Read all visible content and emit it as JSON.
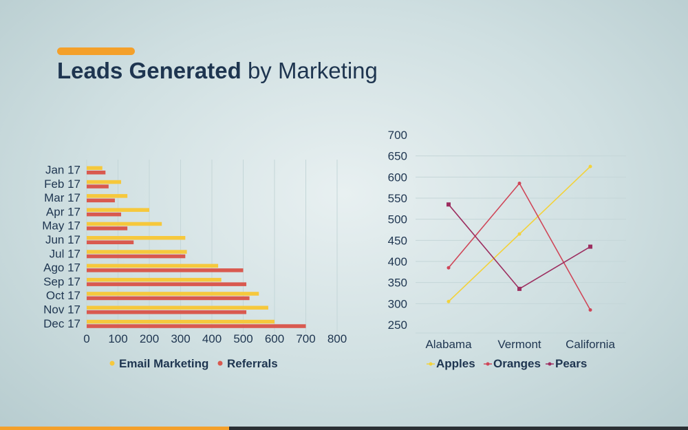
{
  "title": {
    "bold": "Leads Generated",
    "light": "by Marketing"
  },
  "colors": {
    "accent": "#f4a02a",
    "title": "#1e3550",
    "email": "#f6c83c",
    "referrals": "#d9594f",
    "apples": "#f3d23a",
    "oranges": "#cf4658",
    "pears": "#9c2d5f",
    "grid": "#c4d6d8",
    "axisText": "#1e3550",
    "bottomDark": "#2a2f33"
  },
  "chart_data": [
    {
      "type": "bar",
      "orientation": "horizontal",
      "categories": [
        "Jan 17",
        "Feb 17",
        "Mar 17",
        "Apr 17",
        "May 17",
        "Jun 17",
        "Jul 17",
        "Ago 17",
        "Sep 17",
        "Oct 17",
        "Nov 17",
        "Dec 17"
      ],
      "series": [
        {
          "name": "Email Marketing",
          "values": [
            50,
            110,
            130,
            200,
            240,
            315,
            320,
            420,
            430,
            550,
            580,
            600
          ]
        },
        {
          "name": "Referrals",
          "values": [
            60,
            70,
            90,
            110,
            130,
            150,
            315,
            500,
            510,
            520,
            510,
            700
          ]
        }
      ],
      "xlim": [
        0,
        800
      ],
      "xticks": [
        "0",
        "100",
        "200",
        "300",
        "400",
        "500",
        "600",
        "700",
        "800"
      ],
      "legend": "bottom",
      "grid": true
    },
    {
      "type": "line",
      "categories": [
        "Alabama",
        "Vermont",
        "California"
      ],
      "series": [
        {
          "name": "Apples",
          "values": [
            305,
            465,
            625
          ]
        },
        {
          "name": "Oranges",
          "values": [
            385,
            585,
            285
          ]
        },
        {
          "name": "Pears",
          "values": [
            535,
            335,
            435
          ]
        }
      ],
      "ylim": [
        250,
        700
      ],
      "yticks": [
        "250",
        "300",
        "350",
        "400",
        "450",
        "500",
        "550",
        "600",
        "650",
        "700"
      ],
      "legend": "bottom",
      "grid": true
    }
  ]
}
